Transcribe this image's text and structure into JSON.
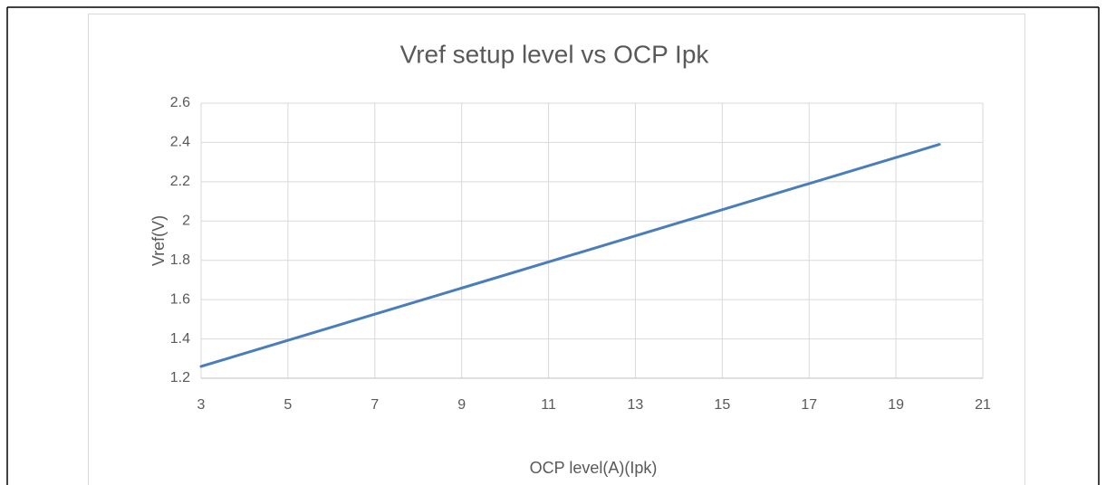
{
  "chart_data": {
    "type": "line",
    "title": "Vref setup level vs OCP Ipk",
    "x_label": "OCP level(A)(Ipk)",
    "y_label": "Vref(V)",
    "x": [
      3,
      20
    ],
    "series": [
      {
        "name": "Vref",
        "color": "#4a7ebb",
        "values": [
          1.26,
          2.39
        ]
      }
    ],
    "xlim": [
      3,
      21
    ],
    "xticks": [
      3,
      5,
      7,
      9,
      11,
      13,
      15,
      17,
      19,
      21
    ],
    "ylim": [
      1.2,
      2.6
    ],
    "yticks": [
      1.2,
      1.4,
      1.6,
      1.8,
      2,
      2.2,
      2.4,
      2.6
    ],
    "grid": true
  }
}
